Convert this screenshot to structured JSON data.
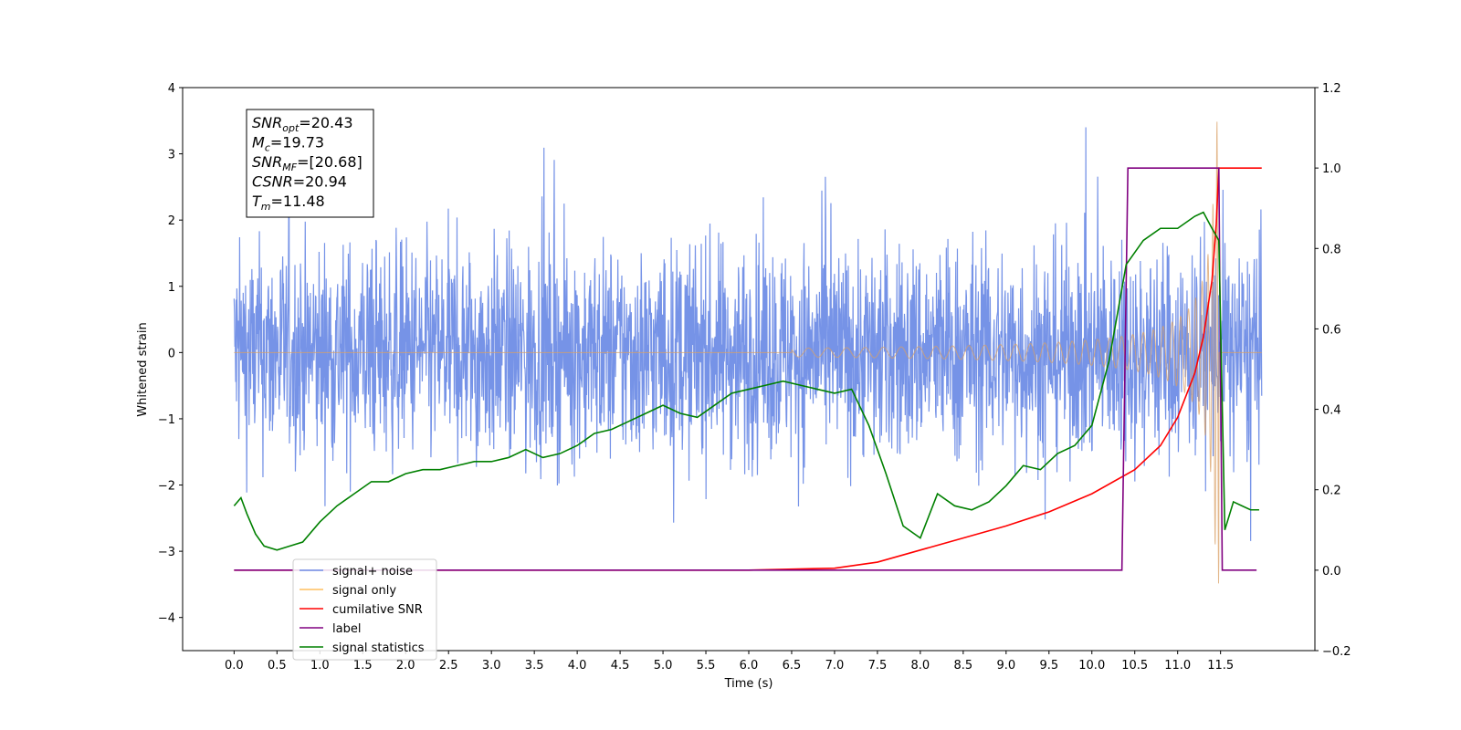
{
  "chart_data": {
    "type": "line",
    "xlabel": "Time (s)",
    "ylabel": "Whitened strain",
    "xlim": [
      -0.6,
      12.6
    ],
    "ylim_left": [
      -4.5,
      4.0
    ],
    "ylim_right": [
      -0.2,
      1.2
    ],
    "grid": false,
    "legend_position": "lower-left",
    "x_ticks": [
      0.0,
      0.5,
      1.0,
      1.5,
      2.0,
      2.5,
      3.0,
      3.5,
      4.0,
      4.5,
      5.0,
      5.5,
      6.0,
      6.5,
      7.0,
      7.5,
      8.0,
      8.5,
      9.0,
      9.5,
      10.0,
      10.5,
      11.0,
      11.5
    ],
    "x_tick_labels": [
      "0.0",
      "0.5",
      "1.0",
      "1.5",
      "2.0",
      "2.5",
      "3.0",
      "3.5",
      "4.0",
      "4.5",
      "5.0",
      "5.5",
      "6.0",
      "6.5",
      "7.0",
      "7.5",
      "8.0",
      "8.5",
      "9.0",
      "9.5",
      "10.0",
      "10.5",
      "11.0",
      "11.5"
    ],
    "y_left_ticks": [
      -4,
      -3,
      -2,
      -1,
      0,
      1,
      2,
      3,
      4
    ],
    "y_left_tick_labels": [
      "−4",
      "−3",
      "−2",
      "−1",
      "0",
      "1",
      "2",
      "3",
      "4"
    ],
    "y_right_ticks": [
      -0.2,
      0.0,
      0.2,
      0.4,
      0.6,
      0.8,
      1.0,
      1.2
    ],
    "y_right_tick_labels": [
      "−0.2",
      "0.0",
      "0.2",
      "0.4",
      "0.6",
      "0.8",
      "1.0",
      "1.2"
    ],
    "info_box": [
      {
        "base": "SNR",
        "sub": "opt",
        "value": "=20.43"
      },
      {
        "base": "M",
        "sub": "c",
        "value": "=19.73"
      },
      {
        "base": "SNR",
        "sub": "MF",
        "value": "=[20.68]"
      },
      {
        "base": "CSNR",
        "sub": "",
        "value": "=20.94"
      },
      {
        "base": "T",
        "sub": "m",
        "value": "=11.48"
      }
    ],
    "legend": [
      {
        "label": "signal+ noise",
        "color": "#6f8de6"
      },
      {
        "label": "signal only",
        "color": "#ffbf5f"
      },
      {
        "label": "cumilative SNR",
        "color": "#ff0000"
      },
      {
        "label": "label",
        "color": "#800080"
      },
      {
        "label": "signal statistics",
        "color": "#008000"
      }
    ],
    "series": [
      {
        "name": "signal+ noise",
        "axis": "left",
        "color": "#6f8de6",
        "description": "dense whitened noise, approx. uniform amplitude ~[-2.5, 2.5] with spikes to 3.5/-4.1, t in [0, 11.98]",
        "t_range": [
          0.0,
          11.98
        ],
        "envelope": [
          -2.5,
          2.5
        ]
      },
      {
        "name": "signal only",
        "axis": "left",
        "color": "#d9a066",
        "description": "chirp, zero until ~6.5 s, amplitude growing to ~3.5 at merger ~11.48 s, then drop to zero",
        "merger_time": 11.48,
        "peak_amplitude": 3.5
      },
      {
        "name": "cumilative SNR",
        "axis": "right",
        "color": "#ff0000",
        "x": [
          0.0,
          6.0,
          7.0,
          7.5,
          8.0,
          8.5,
          9.0,
          9.5,
          10.0,
          10.5,
          10.8,
          11.0,
          11.2,
          11.3,
          11.4,
          11.45,
          11.48,
          11.5,
          11.98
        ],
        "y": [
          0.0,
          0.0,
          0.005,
          0.02,
          0.05,
          0.08,
          0.11,
          0.145,
          0.19,
          0.25,
          0.31,
          0.38,
          0.49,
          0.58,
          0.72,
          0.86,
          1.0,
          1.0,
          1.0
        ]
      },
      {
        "name": "label",
        "axis": "right",
        "color": "#800080",
        "x": [
          0.0,
          10.35,
          10.42,
          11.48,
          11.52,
          11.92
        ],
        "y": [
          0.0,
          0.0,
          1.0,
          1.0,
          0.0,
          0.0
        ]
      },
      {
        "name": "signal statistics",
        "axis": "right",
        "color": "#008000",
        "x": [
          0.0,
          0.08,
          0.15,
          0.25,
          0.35,
          0.5,
          0.65,
          0.8,
          1.0,
          1.2,
          1.4,
          1.6,
          1.8,
          2.0,
          2.2,
          2.4,
          2.6,
          2.8,
          3.0,
          3.2,
          3.4,
          3.6,
          3.8,
          4.0,
          4.2,
          4.4,
          4.6,
          4.8,
          5.0,
          5.2,
          5.4,
          5.6,
          5.8,
          6.0,
          6.2,
          6.4,
          6.6,
          6.8,
          7.0,
          7.2,
          7.4,
          7.6,
          7.8,
          8.0,
          8.2,
          8.4,
          8.6,
          8.8,
          9.0,
          9.2,
          9.4,
          9.6,
          9.8,
          10.0,
          10.2,
          10.4,
          10.6,
          10.8,
          11.0,
          11.2,
          11.3,
          11.4,
          11.48,
          11.55,
          11.65,
          11.75,
          11.85,
          11.95
        ],
        "y": [
          0.16,
          0.18,
          0.14,
          0.09,
          0.06,
          0.05,
          0.06,
          0.07,
          0.12,
          0.16,
          0.19,
          0.22,
          0.22,
          0.24,
          0.25,
          0.25,
          0.26,
          0.27,
          0.27,
          0.28,
          0.3,
          0.28,
          0.29,
          0.31,
          0.34,
          0.35,
          0.37,
          0.39,
          0.41,
          0.39,
          0.38,
          0.41,
          0.44,
          0.45,
          0.46,
          0.47,
          0.46,
          0.45,
          0.44,
          0.45,
          0.36,
          0.24,
          0.11,
          0.08,
          0.19,
          0.16,
          0.15,
          0.17,
          0.21,
          0.26,
          0.25,
          0.29,
          0.31,
          0.36,
          0.52,
          0.76,
          0.82,
          0.85,
          0.85,
          0.88,
          0.89,
          0.85,
          0.82,
          0.1,
          0.17,
          0.16,
          0.15,
          0.15
        ]
      }
    ]
  }
}
